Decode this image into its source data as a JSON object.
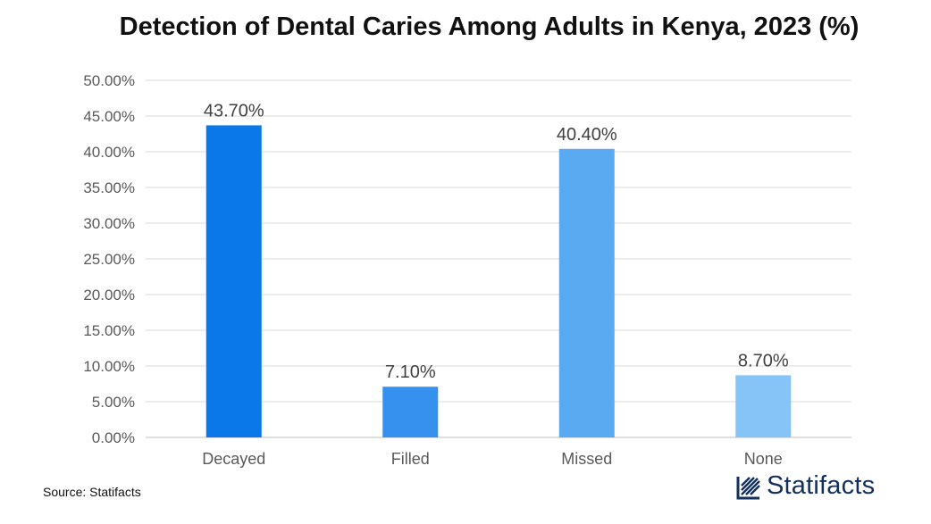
{
  "chart_data": {
    "type": "bar",
    "title": "Detection of Dental Caries Among Adults in Kenya, 2023 (%)",
    "categories": [
      "Decayed",
      "Filled",
      "Missed",
      "None"
    ],
    "values": [
      43.7,
      7.1,
      40.4,
      8.7
    ],
    "data_labels": [
      "43.70%",
      "7.10%",
      "40.40%",
      "8.70%"
    ],
    "bar_colors": [
      "#0a78e8",
      "#3590ee",
      "#5aaaf2",
      "#86c3f7"
    ],
    "ylim": [
      0,
      50
    ],
    "yticks": [
      "0.00%",
      "5.00%",
      "10.00%",
      "15.00%",
      "20.00%",
      "25.00%",
      "30.00%",
      "35.00%",
      "40.00%",
      "45.00%",
      "50.00%"
    ],
    "xlabel": "",
    "ylabel": "",
    "grid": true
  },
  "footer": {
    "source": "Source: Statifacts",
    "brand": "Statifacts"
  },
  "colors": {
    "grid": "#d9d9d9",
    "tick_text": "#595959",
    "label_text": "#404040",
    "brand": "#13305c"
  }
}
